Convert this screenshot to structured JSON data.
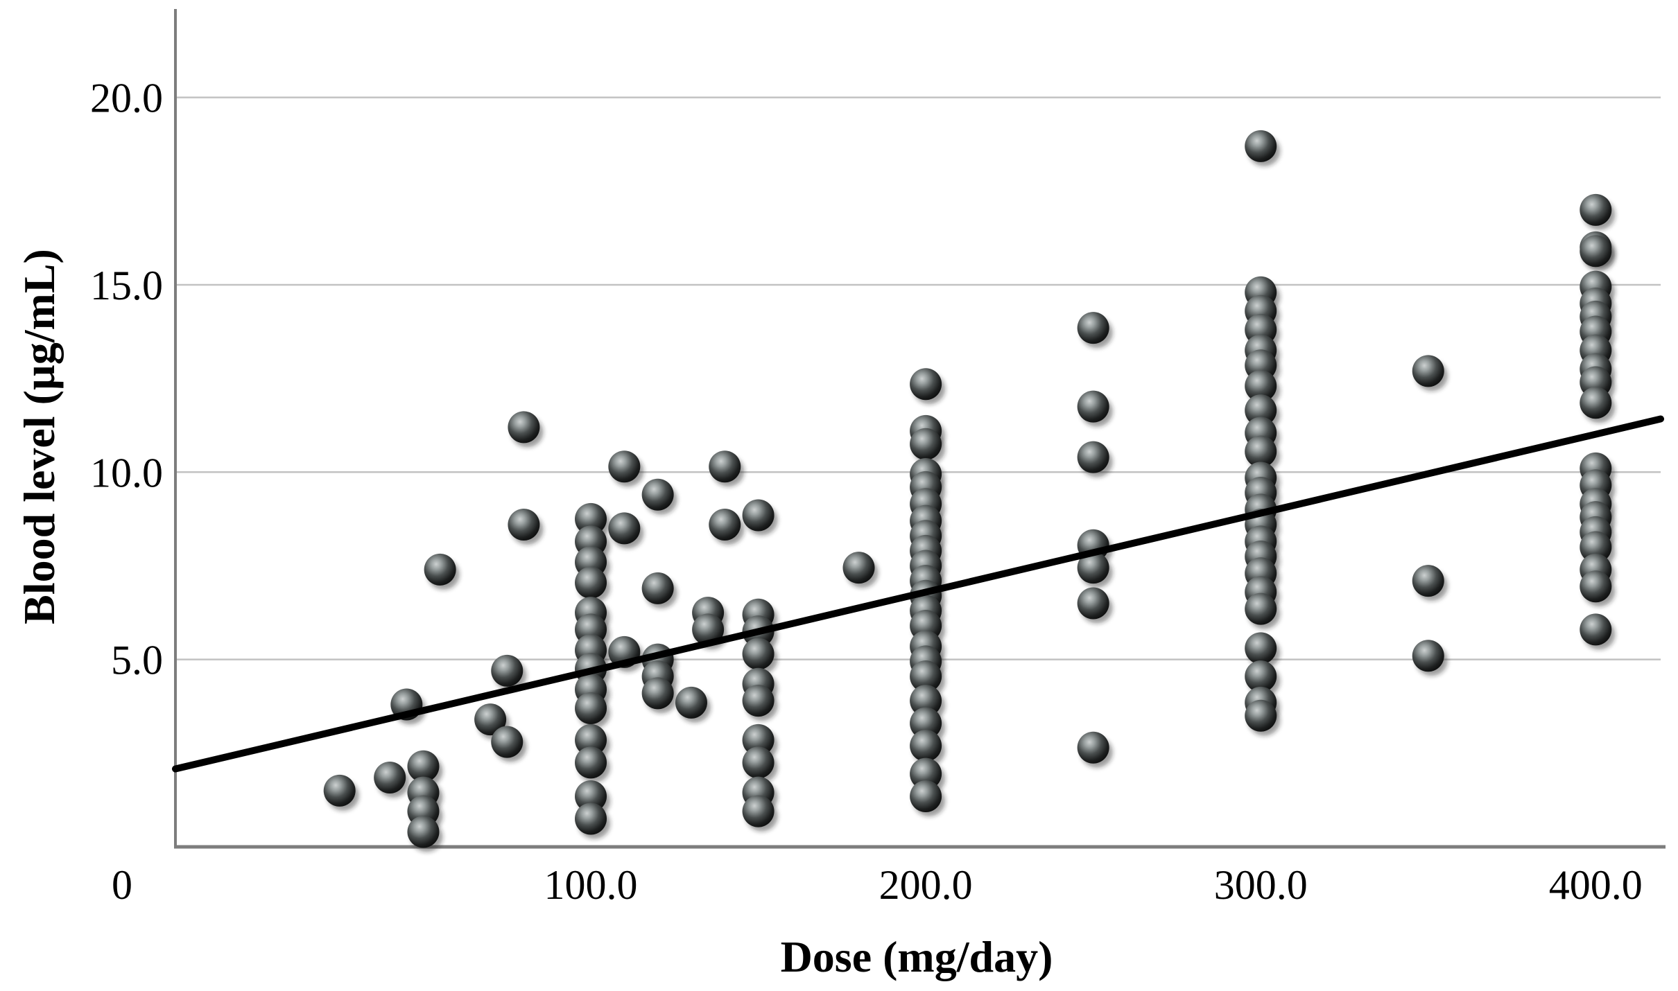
{
  "chart_data": {
    "type": "scatter",
    "title": "",
    "xlabel": "Dose (mg/day)",
    "ylabel": "Blood level (µg/mL)",
    "origin_label": "0",
    "xlim": [
      -24,
      419.4
    ],
    "ylim": [
      0,
      22.36
    ],
    "grid": "horizontal gridlines only",
    "legend": "none",
    "x_ticks": [
      {
        "v": 100,
        "label": "100.0"
      },
      {
        "v": 200,
        "label": "200.0"
      },
      {
        "v": 300,
        "label": "300.0"
      },
      {
        "v": 400,
        "label": "400.0"
      }
    ],
    "y_ticks": [
      {
        "v": 5,
        "label": "5.0"
      },
      {
        "v": 10,
        "label": "10.0"
      },
      {
        "v": 15,
        "label": "15.0"
      },
      {
        "v": 20,
        "label": "20.0"
      }
    ],
    "regression_line": {
      "x1": -24,
      "y1": 2.08,
      "x2": 419.4,
      "y2": 11.42
    },
    "points": [
      [
        25,
        1.5
      ],
      [
        40,
        1.85
      ],
      [
        45,
        3.8
      ],
      [
        50,
        2.15
      ],
      [
        50,
        1.45
      ],
      [
        50,
        0.95
      ],
      [
        50,
        0.4
      ],
      [
        55,
        7.4
      ],
      [
        70,
        3.4
      ],
      [
        75,
        4.7
      ],
      [
        75,
        2.8
      ],
      [
        80,
        11.2
      ],
      [
        80,
        8.6
      ],
      [
        100,
        8.75
      ],
      [
        100,
        8.15
      ],
      [
        100,
        7.6
      ],
      [
        100,
        7.05
      ],
      [
        100,
        6.25
      ],
      [
        100,
        5.8
      ],
      [
        100,
        5.25
      ],
      [
        100,
        4.75
      ],
      [
        100,
        4.2
      ],
      [
        100,
        3.7
      ],
      [
        100,
        2.85
      ],
      [
        100,
        2.25
      ],
      [
        100,
        1.35
      ],
      [
        100,
        0.75
      ],
      [
        110,
        10.15
      ],
      [
        110,
        8.5
      ],
      [
        110,
        5.2
      ],
      [
        120,
        9.4
      ],
      [
        120,
        6.9
      ],
      [
        120,
        5.0
      ],
      [
        120,
        4.55
      ],
      [
        120,
        4.1
      ],
      [
        130,
        3.85
      ],
      [
        135,
        6.25
      ],
      [
        135,
        5.8
      ],
      [
        140,
        10.15
      ],
      [
        140,
        8.6
      ],
      [
        150,
        8.85
      ],
      [
        150,
        6.2
      ],
      [
        150,
        5.75
      ],
      [
        150,
        5.15
      ],
      [
        150,
        4.35
      ],
      [
        150,
        3.9
      ],
      [
        150,
        2.85
      ],
      [
        150,
        2.25
      ],
      [
        150,
        1.45
      ],
      [
        150,
        0.95
      ],
      [
        180,
        7.45
      ],
      [
        200,
        12.35
      ],
      [
        200,
        11.1
      ],
      [
        200,
        10.75
      ],
      [
        200,
        9.95
      ],
      [
        200,
        9.6
      ],
      [
        200,
        9.15
      ],
      [
        200,
        8.7
      ],
      [
        200,
        8.3
      ],
      [
        200,
        7.9
      ],
      [
        200,
        7.5
      ],
      [
        200,
        7.1
      ],
      [
        200,
        6.7
      ],
      [
        200,
        6.3
      ],
      [
        200,
        5.9
      ],
      [
        200,
        5.35
      ],
      [
        200,
        4.95
      ],
      [
        200,
        4.55
      ],
      [
        200,
        3.9
      ],
      [
        200,
        3.3
      ],
      [
        200,
        2.7
      ],
      [
        200,
        1.95
      ],
      [
        200,
        1.35
      ],
      [
        250,
        13.85
      ],
      [
        250,
        11.75
      ],
      [
        250,
        10.4
      ],
      [
        250,
        8.05
      ],
      [
        250,
        7.45
      ],
      [
        250,
        6.5
      ],
      [
        250,
        2.65
      ],
      [
        300,
        18.7
      ],
      [
        300,
        14.8
      ],
      [
        300,
        14.3
      ],
      [
        300,
        13.8
      ],
      [
        300,
        13.25
      ],
      [
        300,
        12.85
      ],
      [
        300,
        12.3
      ],
      [
        300,
        11.65
      ],
      [
        300,
        11.05
      ],
      [
        300,
        10.55
      ],
      [
        300,
        9.85
      ],
      [
        300,
        9.45
      ],
      [
        300,
        9.0
      ],
      [
        300,
        8.6
      ],
      [
        300,
        8.15
      ],
      [
        300,
        7.75
      ],
      [
        300,
        7.3
      ],
      [
        300,
        6.8
      ],
      [
        300,
        6.35
      ],
      [
        300,
        5.3
      ],
      [
        300,
        4.55
      ],
      [
        300,
        3.85
      ],
      [
        300,
        3.5
      ],
      [
        350,
        12.7
      ],
      [
        350,
        7.1
      ],
      [
        350,
        5.1
      ],
      [
        400,
        17.0
      ],
      [
        400,
        16.0
      ],
      [
        400,
        15.9
      ],
      [
        400,
        14.95
      ],
      [
        400,
        14.5
      ],
      [
        400,
        14.15
      ],
      [
        400,
        13.75
      ],
      [
        400,
        13.25
      ],
      [
        400,
        12.75
      ],
      [
        400,
        12.4
      ],
      [
        400,
        11.85
      ],
      [
        400,
        10.1
      ],
      [
        400,
        9.65
      ],
      [
        400,
        9.15
      ],
      [
        400,
        8.8
      ],
      [
        400,
        8.4
      ],
      [
        400,
        8.0
      ],
      [
        400,
        7.4
      ],
      [
        400,
        6.95
      ],
      [
        400,
        5.8
      ]
    ],
    "colors": {
      "point_core": "#c8cccc",
      "point_mid": "#4a4f4f",
      "point_rim": "#0c0d0d",
      "regression_line": "#000000",
      "gridline": "#c2c2c2",
      "axis_line": "#7d7d7d",
      "text": "#000000",
      "background": "#ffffff"
    }
  }
}
